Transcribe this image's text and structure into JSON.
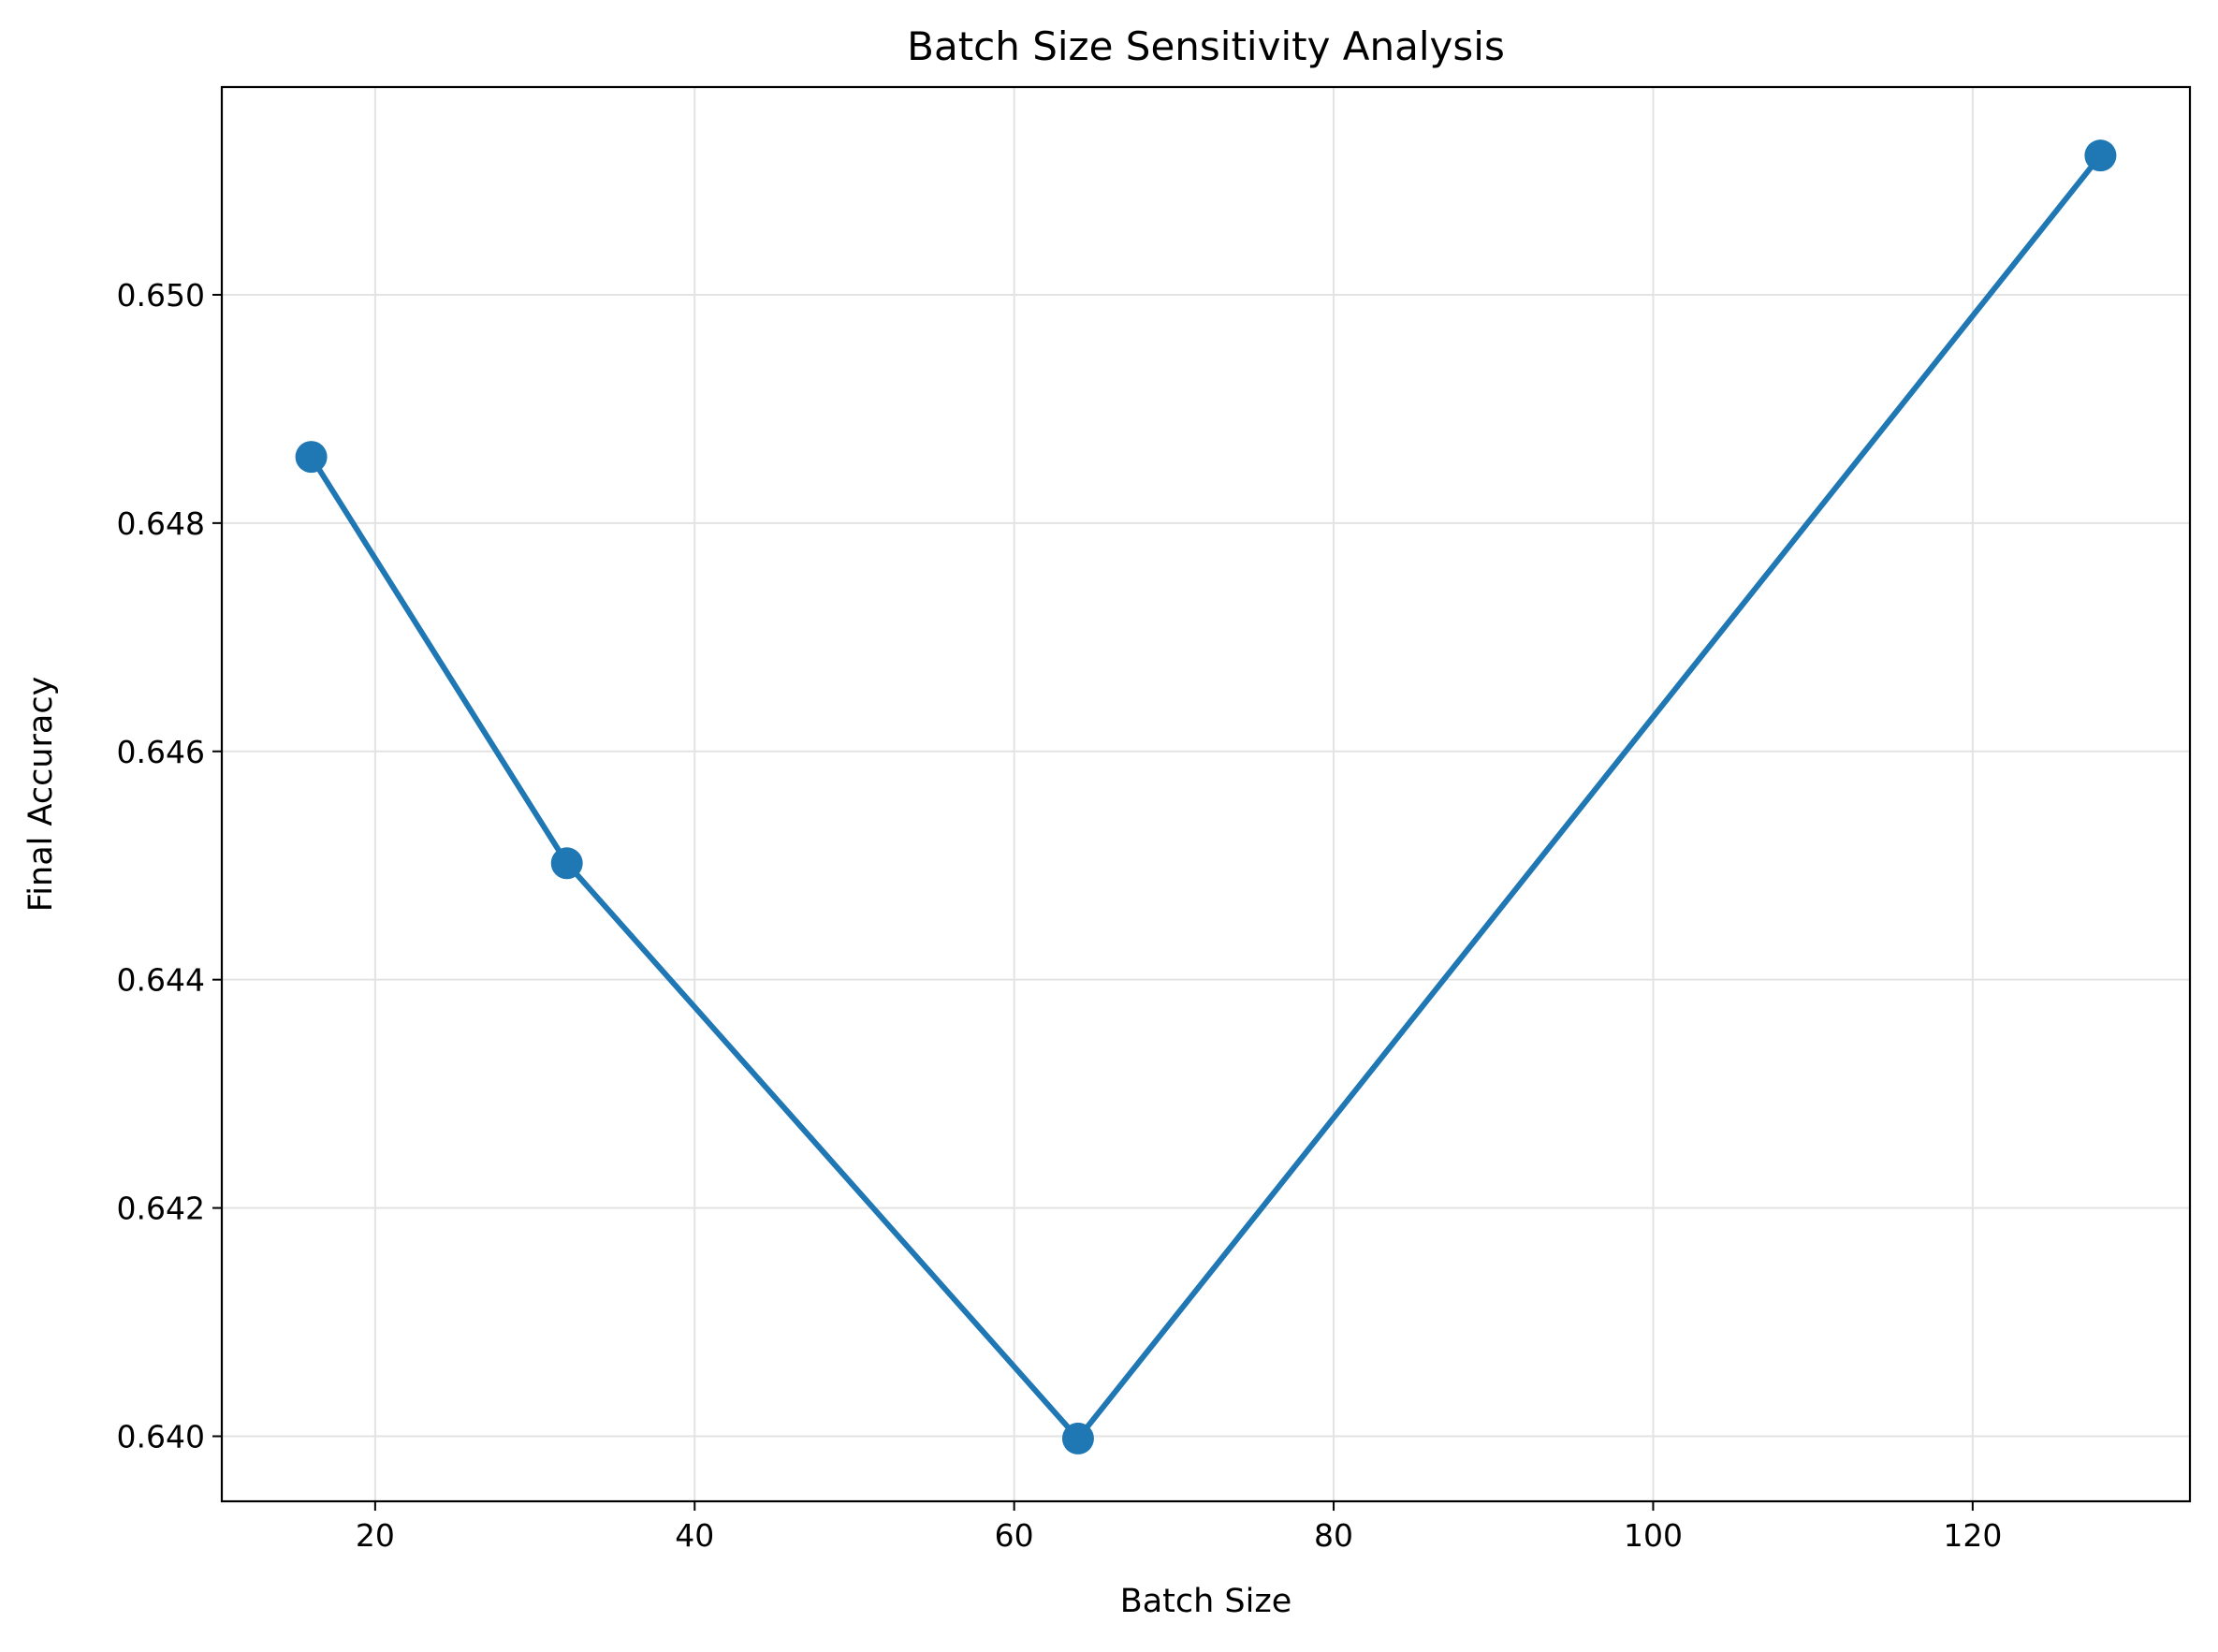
{
  "chart_data": {
    "type": "line",
    "title": "Batch Size Sensitivity Analysis",
    "xlabel": "Batch Size",
    "ylabel": "Final Accuracy",
    "xlim": [
      10.4,
      133.6
    ],
    "ylim": [
      0.63943,
      0.65182
    ],
    "xticks": [
      20,
      40,
      60,
      80,
      100,
      120
    ],
    "yticks": [
      0.64,
      0.642,
      0.644,
      0.646,
      0.648,
      0.65
    ],
    "xtick_labels": [
      "20",
      "40",
      "60",
      "80",
      "100",
      "120"
    ],
    "ytick_labels": [
      "0.640",
      "0.642",
      "0.644",
      "0.646",
      "0.648",
      "0.650"
    ],
    "grid": true,
    "legend": "none",
    "series": [
      {
        "color": "#1f77b4",
        "marker": "circle",
        "x": [
          16,
          32,
          64,
          128
        ],
        "y": [
          0.64858,
          0.64502,
          0.63998,
          0.65122
        ]
      }
    ]
  }
}
